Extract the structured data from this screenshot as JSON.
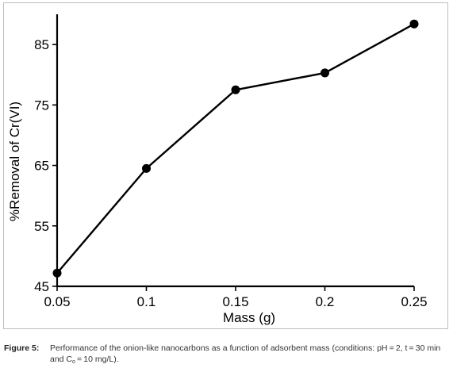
{
  "chart_data": {
    "type": "line",
    "x": [
      0.05,
      0.1,
      0.15,
      0.2,
      0.25
    ],
    "series": [
      {
        "values": [
          47.2,
          64.5,
          77.5,
          80.3,
          88.4
        ]
      }
    ],
    "xlabel": "Mass (g)",
    "ylabel": "%Removal of Cr(VI)",
    "xlim": [
      0.05,
      0.25
    ],
    "ylim": [
      45,
      90
    ],
    "x_ticks": [
      "0.05",
      "0.1",
      "0.15",
      "0.2",
      "0.25"
    ],
    "y_ticks": [
      "45",
      "55",
      "65",
      "75",
      "85"
    ],
    "grid": false,
    "line_color": "#000000",
    "marker": "filled-circle"
  },
  "caption": {
    "label": "Figure 5:",
    "text_main": "Performance of the onion-like nanocarbons as a function of adsorbent mass (conditions: pH = 2, t = 30 min and C",
    "subscript": "o",
    "text_end": " = 10 mg/L)."
  }
}
